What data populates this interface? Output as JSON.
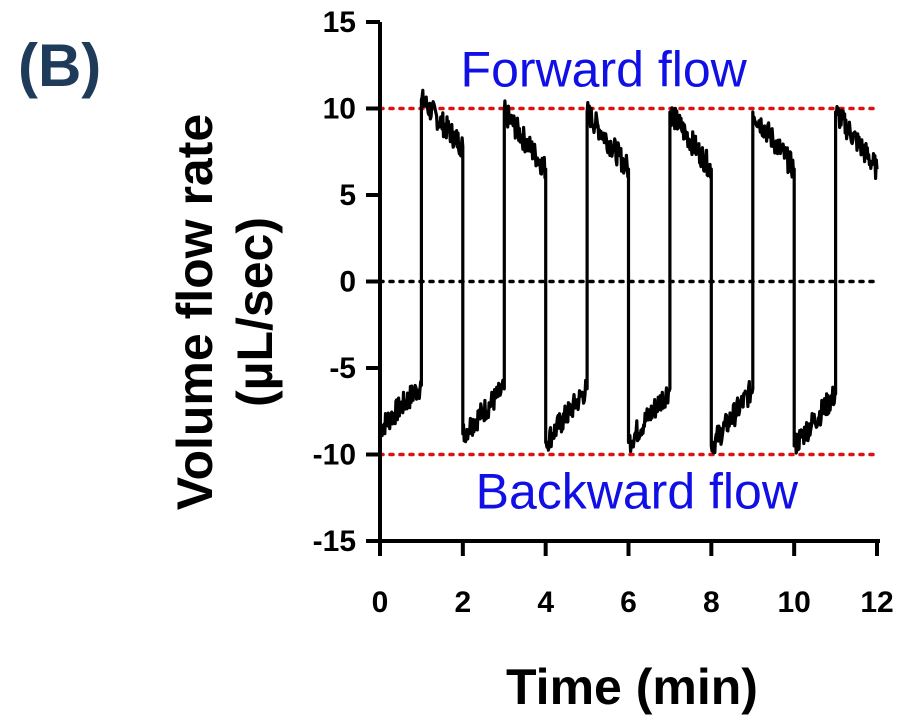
{
  "panel_label": "(B)",
  "colors": {
    "panel_label": "#1f3b5a",
    "annotation": "#1010e6",
    "reference_line": "#e01010",
    "zero_line": "#000000",
    "trace": "#000000"
  },
  "chart_data": {
    "type": "line",
    "title": "",
    "xlabel": "Time (min)",
    "ylabel_line1": "Volume flow rate",
    "ylabel_line2": "(µL/sec)",
    "xlim": [
      0,
      12
    ],
    "ylim": [
      -15,
      15
    ],
    "x_ticks": [
      0,
      2,
      4,
      6,
      8,
      10,
      12
    ],
    "y_ticks": [
      15,
      10,
      5,
      0,
      -5,
      -10,
      -15
    ],
    "grid": false,
    "reference_lines": [
      {
        "y": 10,
        "style": "dotted",
        "color": "#e01010"
      },
      {
        "y": 0,
        "style": "dotted",
        "color": "#000000"
      },
      {
        "y": -10,
        "style": "dotted",
        "color": "#e01010"
      }
    ],
    "annotations": [
      {
        "text": "Forward flow",
        "x": 5.4,
        "y": 12.2
      },
      {
        "text": "Backward flow",
        "x": 6.2,
        "y": -12.2
      }
    ],
    "series": [
      {
        "segments": [
          {
            "x_start": 0,
            "x_end": 1,
            "y_start": -8.5,
            "y_end": -6.0
          },
          {
            "x_start": 1,
            "x_end": 2,
            "y_start": 10.5,
            "y_end": 7.8
          },
          {
            "x_start": 2,
            "x_end": 3,
            "y_start": -8.8,
            "y_end": -6.2
          },
          {
            "x_start": 3,
            "x_end": 4,
            "y_start": 9.8,
            "y_end": 6.5
          },
          {
            "x_start": 4,
            "x_end": 5,
            "y_start": -9.3,
            "y_end": -6.2
          },
          {
            "x_start": 5,
            "x_end": 6,
            "y_start": 9.8,
            "y_end": 6.5
          },
          {
            "x_start": 6,
            "x_end": 7,
            "y_start": -9.3,
            "y_end": -6.2
          },
          {
            "x_start": 7,
            "x_end": 8,
            "y_start": 9.8,
            "y_end": 6.5
          },
          {
            "x_start": 8,
            "x_end": 9,
            "y_start": -9.5,
            "y_end": -6.2
          },
          {
            "x_start": 9,
            "x_end": 10,
            "y_start": 9.8,
            "y_end": 6.5
          },
          {
            "x_start": 10,
            "x_end": 11,
            "y_start": -9.5,
            "y_end": -6.5
          },
          {
            "x_start": 11,
            "x_end": 12,
            "y_start": 9.8,
            "y_end": 6.5
          }
        ]
      }
    ]
  }
}
